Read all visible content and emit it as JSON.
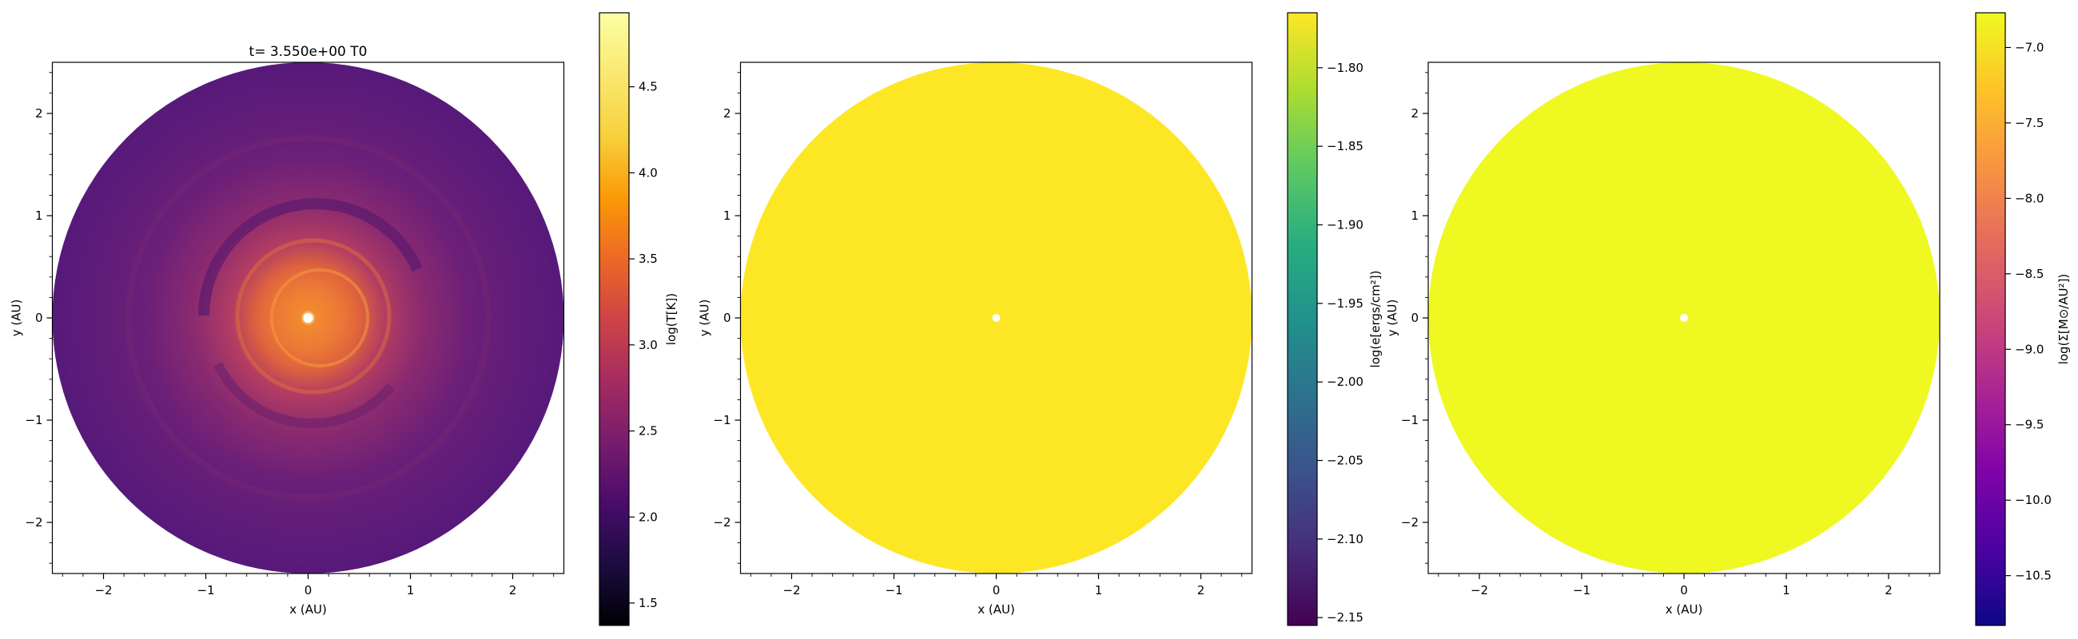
{
  "chart_data": [
    {
      "type": "heatmap",
      "title": "t= 3.550e+00 T0",
      "xlabel": "x (AU)",
      "ylabel": "y (AU)",
      "xlim": [
        -2.5,
        2.5
      ],
      "ylim": [
        -2.5,
        2.5
      ],
      "x_ticks": [
        "−2",
        "−1",
        "0",
        "1",
        "2"
      ],
      "y_ticks": [
        "−2",
        "−1",
        "0",
        "1",
        "2"
      ],
      "colorbar": {
        "label": "log(T[K])",
        "colormap": "inferno",
        "range": [
          1.37,
          4.93
        ],
        "ticks": [
          "1.5",
          "2.0",
          "2.5",
          "3.0",
          "3.5",
          "4.0",
          "4.5"
        ],
        "tick_values": [
          1.5,
          2.0,
          2.5,
          3.0,
          3.5,
          4.0,
          4.5
        ]
      },
      "disk_outer_radius": 2.5,
      "disk_inner_radius": 0.05,
      "description_colors": {
        "outer": "#58187a",
        "mid": "#8a2a6e",
        "inner": "#e85a2a",
        "center": "#ffffff"
      }
    },
    {
      "type": "heatmap",
      "title": "",
      "xlabel": "x (AU)",
      "ylabel": "y (AU)",
      "xlim": [
        -2.5,
        2.5
      ],
      "ylim": [
        -2.5,
        2.5
      ],
      "x_ticks": [
        "−2",
        "−1",
        "0",
        "1",
        "2"
      ],
      "y_ticks": [
        "−2",
        "−1",
        "0",
        "1",
        "2"
      ],
      "colorbar": {
        "label": "log(e[ergs/cm²])",
        "colormap": "viridis",
        "range": [
          -2.155,
          -1.765
        ],
        "ticks": [
          "−1.80",
          "−1.85",
          "−1.90",
          "−1.95",
          "−2.00",
          "−2.05",
          "−2.10",
          "−2.15"
        ],
        "tick_values": [
          -1.8,
          -1.85,
          -1.9,
          -1.95,
          -2.0,
          -2.05,
          -2.1,
          -2.15
        ]
      },
      "disk_outer_radius": 2.5,
      "disk_inner_radius": 0.04,
      "fill_color": "#fde725"
    },
    {
      "type": "heatmap",
      "title": "",
      "xlabel": "x (AU)",
      "ylabel": "y (AU)",
      "xlim": [
        -2.5,
        2.5
      ],
      "ylim": [
        -2.5,
        2.5
      ],
      "x_ticks": [
        "−2",
        "−1",
        "0",
        "1",
        "2"
      ],
      "y_ticks": [
        "−2",
        "−1",
        "0",
        "1",
        "2"
      ],
      "colorbar": {
        "label": "log(Σ[M⊙/AU²])",
        "colormap": "plasma",
        "range": [
          -10.83,
          -6.77
        ],
        "ticks": [
          "−7.0",
          "−7.5",
          "−8.0",
          "−8.5",
          "−9.0",
          "−9.5",
          "−10.0",
          "−10.5"
        ],
        "tick_values": [
          -7.0,
          -7.5,
          -8.0,
          -8.5,
          -9.0,
          -9.5,
          -10.0,
          -10.5
        ]
      },
      "disk_outer_radius": 2.5,
      "disk_inner_radius": 0.04,
      "fill_color": "#eff821"
    }
  ]
}
